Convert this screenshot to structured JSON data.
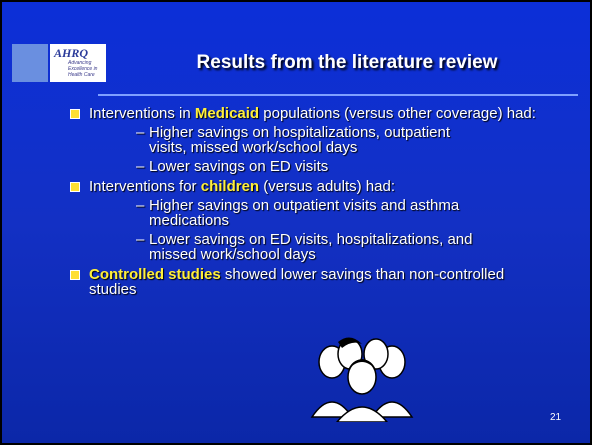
{
  "logo": {
    "name": "AHRQ",
    "tagline": [
      "Advancing",
      "Excellence in",
      "Health Care"
    ]
  },
  "title": "Results from the literature review",
  "bullets": [
    {
      "parts": [
        {
          "text": "Interventions in "
        },
        {
          "text": "Medicaid",
          "em": true
        },
        {
          "text": " populations (versus other coverage) had:"
        }
      ],
      "subs": [
        "Higher savings on hospitalizations, outpatient visits, missed work/school days",
        "Lower savings on ED visits"
      ]
    },
    {
      "parts": [
        {
          "text": "Interventions for "
        },
        {
          "text": "children",
          "em": true
        },
        {
          "text": " (versus adults) had:"
        }
      ],
      "subs": [
        "Higher savings on outpatient visits and asthma medications",
        "Lower savings on ED visits, hospitalizations, and missed work/school days"
      ]
    },
    {
      "parts": [
        {
          "text": "Controlled studies",
          "em": true
        },
        {
          "text": " showed lower savings than non-controlled studies"
        }
      ],
      "subs": []
    }
  ],
  "page_number": "21"
}
